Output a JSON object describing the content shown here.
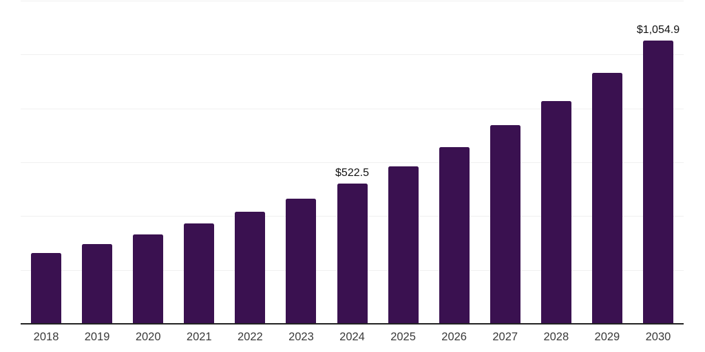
{
  "chart_data": {
    "type": "bar",
    "title": "",
    "xlabel": "",
    "ylabel": "",
    "legend": "none",
    "grid": true,
    "ylim": [
      0,
      1200
    ],
    "grid_step": 200,
    "categories": [
      "2018",
      "2019",
      "2020",
      "2021",
      "2022",
      "2023",
      "2024",
      "2025",
      "2026",
      "2027",
      "2028",
      "2029",
      "2030"
    ],
    "values": [
      266.0,
      300.0,
      335.5,
      376.5,
      419.5,
      468.0,
      522.5,
      587.5,
      658.5,
      740.0,
      829.0,
      935.5,
      1054.9
    ],
    "value_labels": {
      "2024": "$522.5",
      "2030": "$1,054.9"
    }
  },
  "theme": {
    "background_color": "#ffffff",
    "bar_color": "#3a1150",
    "gridline_color": "#f0f0f0",
    "axis_line_color": "#222222",
    "tick_label_color": "#3a3a3a",
    "value_label_color": "#111111"
  }
}
